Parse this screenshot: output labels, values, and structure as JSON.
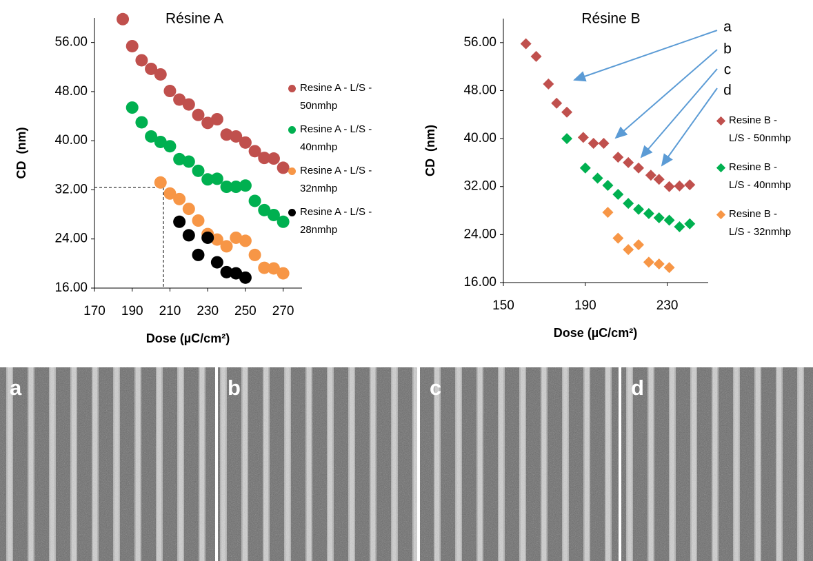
{
  "chart_data": [
    {
      "type": "scatter",
      "title": "Résine A",
      "xlabel": "Dose (µC/cm²)",
      "ylabel": "CD  (nm)",
      "marker": "circle",
      "xlim": [
        170,
        280
      ],
      "ylim": [
        16,
        60
      ],
      "xticks": [
        170,
        190,
        210,
        230,
        250,
        270
      ],
      "yticks": [
        {
          "value": 16,
          "label": "16.00"
        },
        {
          "value": 24,
          "label": "24.00"
        },
        {
          "value": 32,
          "label": "32.00"
        },
        {
          "value": 40,
          "label": "40.00"
        },
        {
          "value": 48,
          "label": "48.00"
        },
        {
          "value": 56,
          "label": "56.00"
        }
      ],
      "series": [
        {
          "name": "Resine A - L/S - 50nmhp",
          "color": "#c0504d",
          "x": [
            185,
            190,
            195,
            200,
            205,
            210,
            215,
            220,
            225,
            230,
            235,
            240,
            245,
            250,
            255,
            260,
            265,
            270
          ],
          "values": [
            59.8,
            55.4,
            53.1,
            51.7,
            50.8,
            48.1,
            46.7,
            45.9,
            44.2,
            42.9,
            43.5,
            41.0,
            40.7,
            39.7,
            38.3,
            37.2,
            37.1,
            35.6
          ]
        },
        {
          "name": "Resine A - L/S - 40nmhp",
          "color": "#00b050",
          "x": [
            190,
            195,
            200,
            205,
            210,
            215,
            220,
            225,
            230,
            235,
            240,
            245,
            250,
            255,
            260,
            265,
            270
          ],
          "values": [
            45.4,
            43.0,
            40.7,
            39.8,
            39.1,
            37.0,
            36.6,
            35.1,
            33.7,
            33.8,
            32.5,
            32.5,
            32.7,
            30.2,
            28.7,
            27.9,
            26.8
          ]
        },
        {
          "name": "Resine A - L/S - 32nmhp",
          "color": "#f79646",
          "x": [
            205,
            210,
            215,
            220,
            225,
            230,
            235,
            240,
            245,
            250,
            255,
            260,
            265,
            270
          ],
          "values": [
            33.2,
            31.4,
            30.5,
            28.9,
            27.0,
            24.8,
            23.9,
            22.8,
            24.2,
            23.7,
            21.4,
            19.3,
            19.2,
            18.4
          ]
        },
        {
          "name": "Resine A - L/S - 28nmhp",
          "color": "#000000",
          "x": [
            215,
            220,
            225,
            230,
            235,
            240,
            245,
            250
          ],
          "values": [
            26.8,
            24.6,
            21.4,
            24.2,
            20.2,
            18.6,
            18.4,
            17.7
          ]
        }
      ]
    },
    {
      "type": "scatter",
      "title": "Résine B",
      "xlabel": "Dose (µC/cm²)",
      "ylabel": "CD  (nm)",
      "marker": "diamond",
      "xlim": [
        150,
        250
      ],
      "ylim": [
        16,
        60
      ],
      "xticks": [
        150,
        190,
        230
      ],
      "yticks": [
        {
          "value": 16,
          "label": "16.00"
        },
        {
          "value": 24,
          "label": "24.00"
        },
        {
          "value": 32,
          "label": "32.00"
        },
        {
          "value": 40,
          "label": "40.00"
        },
        {
          "value": 48,
          "label": "48.00"
        },
        {
          "value": 56,
          "label": "56.00"
        }
      ],
      "annotations": [
        "a",
        "b",
        "c",
        "d"
      ],
      "series": [
        {
          "name": "Resine B - L/S - 50nmhp",
          "color": "#c0504d",
          "x": [
            161,
            166,
            172,
            176,
            181,
            189,
            194,
            199,
            206,
            211,
            216,
            222,
            226,
            231,
            236,
            241
          ],
          "values": [
            55.8,
            53.7,
            49.1,
            45.9,
            44.4,
            40.2,
            39.2,
            39.2,
            36.9,
            36.0,
            35.1,
            33.9,
            33.2,
            32.0,
            32.1,
            32.3
          ]
        },
        {
          "name": "Resine B - L/S - 40nmhp",
          "color": "#00b050",
          "x": [
            181,
            190,
            196,
            201,
            206,
            211,
            216,
            221,
            226,
            231,
            236,
            241
          ],
          "values": [
            40.0,
            35.1,
            33.4,
            32.2,
            30.7,
            29.2,
            28.2,
            27.5,
            26.8,
            26.4,
            25.3,
            25.8
          ]
        },
        {
          "name": "Resine B - L/S - 32nmhp",
          "color": "#f79646",
          "x": [
            201,
            206,
            211,
            216,
            221,
            226,
            231
          ],
          "values": [
            27.7,
            23.4,
            21.5,
            22.3,
            19.4,
            19.1,
            18.5
          ]
        }
      ]
    }
  ],
  "images": [
    {
      "label": "a"
    },
    {
      "label": "b"
    },
    {
      "label": "c"
    },
    {
      "label": "d"
    }
  ]
}
